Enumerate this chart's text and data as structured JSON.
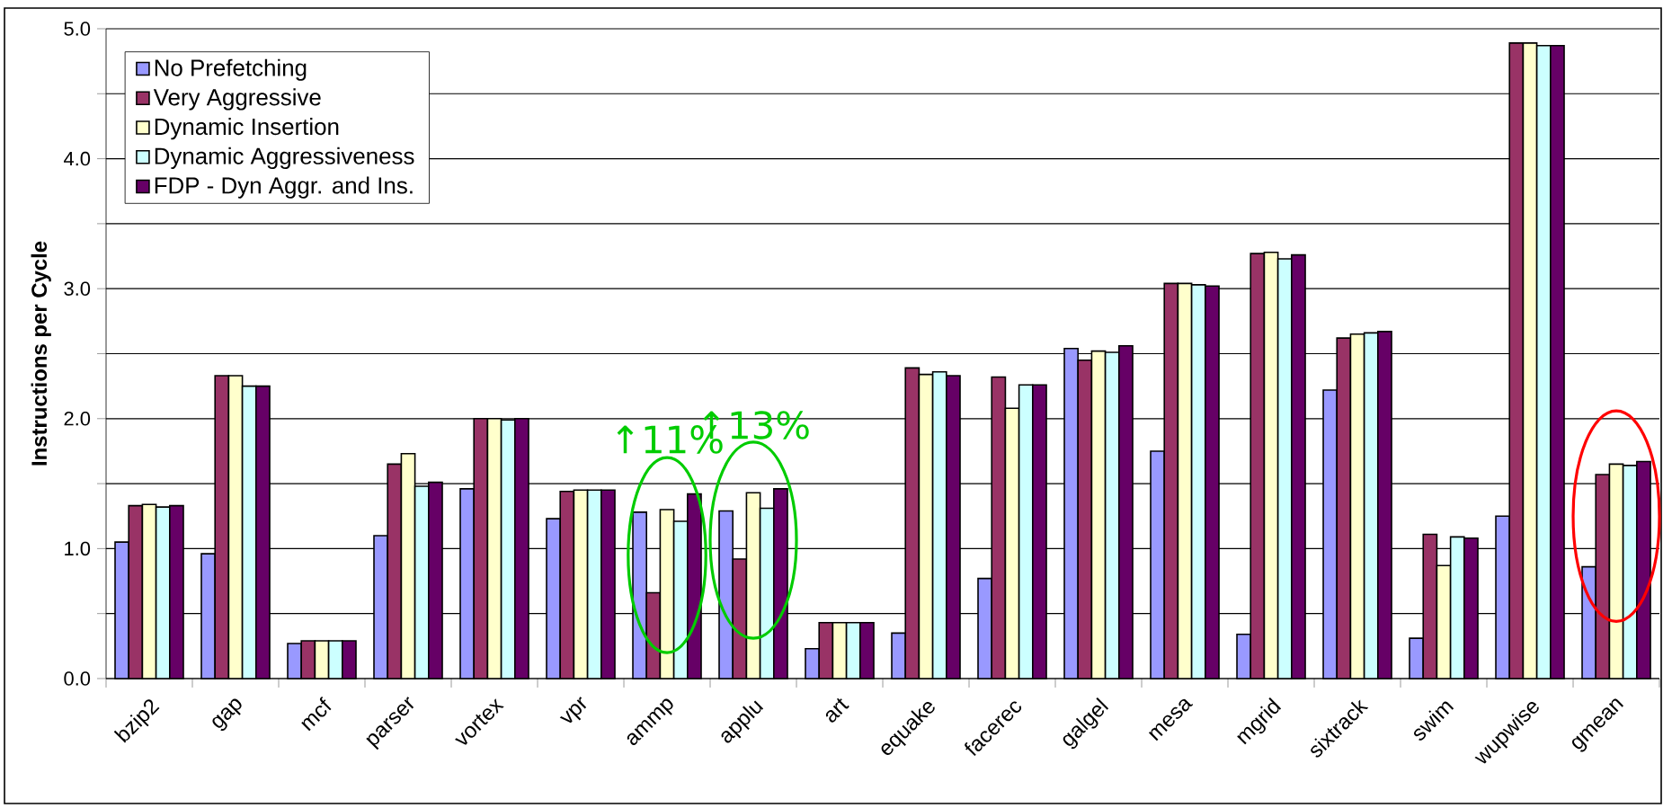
{
  "chart_data": {
    "type": "bar",
    "ylabel": "Instructions per Cycle",
    "categories": [
      "bzip2",
      "gap",
      "mcf",
      "parser",
      "vortex",
      "vpr",
      "ammp",
      "applu",
      "art",
      "equake",
      "facerec",
      "galgel",
      "mesa",
      "mgrid",
      "sixtrack",
      "swim",
      "wupwise",
      "gmean"
    ],
    "series": [
      {
        "name": "No Prefetching",
        "color": "#9999ff",
        "values": [
          1.05,
          0.96,
          0.27,
          1.1,
          1.46,
          1.23,
          1.28,
          1.29,
          0.23,
          0.35,
          0.77,
          2.54,
          1.75,
          0.34,
          2.22,
          0.31,
          1.25,
          0.86
        ]
      },
      {
        "name": "Very Aggressive",
        "color": "#993366",
        "values": [
          1.33,
          2.33,
          0.29,
          1.65,
          2.0,
          1.44,
          0.66,
          0.92,
          0.43,
          2.39,
          2.32,
          2.45,
          3.04,
          3.27,
          2.62,
          1.11,
          4.89,
          1.57
        ]
      },
      {
        "name": "Dynamic Insertion",
        "color": "#ffffcc",
        "values": [
          1.34,
          2.33,
          0.29,
          1.73,
          2.0,
          1.45,
          1.3,
          1.43,
          0.43,
          2.34,
          2.08,
          2.52,
          3.04,
          3.28,
          2.65,
          0.87,
          4.89,
          1.65
        ]
      },
      {
        "name": "Dynamic Aggressiveness",
        "color": "#ccffff",
        "values": [
          1.32,
          2.25,
          0.29,
          1.48,
          1.99,
          1.45,
          1.21,
          1.31,
          0.43,
          2.36,
          2.26,
          2.51,
          3.03,
          3.23,
          2.66,
          1.09,
          4.87,
          1.64
        ]
      },
      {
        "name": "FDP - Dyn Aggr. and Ins.",
        "color": "#660066",
        "values": [
          1.33,
          2.25,
          0.29,
          1.51,
          2.0,
          1.45,
          1.42,
          1.46,
          0.43,
          2.33,
          2.26,
          2.56,
          3.02,
          3.26,
          2.67,
          1.08,
          4.87,
          1.67
        ]
      }
    ],
    "ylim": [
      0,
      5
    ],
    "yticks": [
      {
        "value": 0,
        "label": "0.0"
      },
      {
        "value": 0.5,
        "label": null
      },
      {
        "value": 1,
        "label": "1.0"
      },
      {
        "value": 1.5,
        "label": null
      },
      {
        "value": 2,
        "label": "2.0"
      },
      {
        "value": 2.5,
        "label": null
      },
      {
        "value": 3,
        "label": "3.0"
      },
      {
        "value": 3.5,
        "label": null
      },
      {
        "value": 4,
        "label": "4.0"
      },
      {
        "value": 4.5,
        "label": null
      },
      {
        "value": 5,
        "label": "5.0"
      }
    ],
    "grid": "y",
    "legend": "top left",
    "annotations": [
      "↑11%",
      "↑13%"
    ]
  }
}
